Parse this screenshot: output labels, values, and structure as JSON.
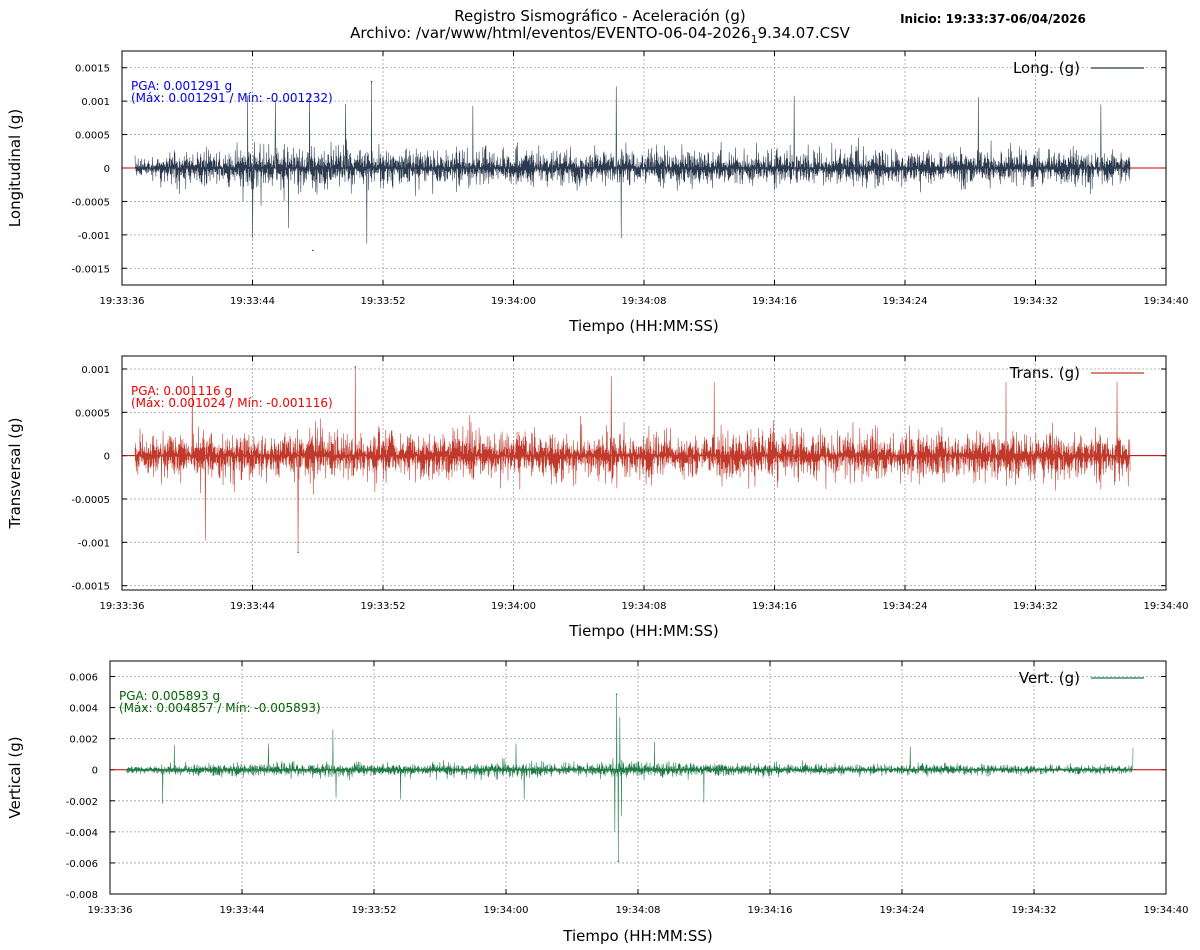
{
  "header": {
    "title_line1": "Registro Sismográfico - Aceleración (g)",
    "title_line2_pre": "Archivo: /var/www/html/eventos/EVENTO-06-04-2026",
    "title_line2_sub": "1",
    "title_line2_post": "9.34.07.CSV",
    "start_label": "Inicio: 19:33:37-06/04/2026"
  },
  "chart_data": [
    {
      "type": "line",
      "title": "",
      "xlabel": "Tiempo (HH:MM:SS)",
      "ylabel": "Longitudinal (g)",
      "legend": "Long. (g)",
      "legend_position": "top-right",
      "grid": true,
      "color": "#2b3a4e",
      "zero_line_color": "#cc0000",
      "x_range_seconds": [
        0,
        64
      ],
      "x_start_time": "19:33:36",
      "data_span_seconds": [
        0.8,
        61.8
      ],
      "xtick_labels": [
        "19:33:36",
        "19:33:44",
        "19:33:52",
        "19:34:00",
        "19:34:08",
        "19:34:16",
        "19:34:24",
        "19:34:32",
        "19:34:40"
      ],
      "ylim": [
        -0.00175,
        0.00175
      ],
      "yticks": [
        -0.0015,
        -0.001,
        -0.0005,
        0,
        0.0005,
        0.001,
        0.0015
      ],
      "ytick_labels": [
        "-0.0015",
        "-0.001",
        "-0.0005",
        "0",
        "0.0005",
        "0.001",
        "0.0015"
      ],
      "annotation_line1": "PGA: 0.001291 g",
      "annotation_line2": "(Máx: 0.001291 / Mín: -0.001232)",
      "annotation_color": "#0000ee",
      "max": 0.001291,
      "min": -0.001232,
      "max_time_s": 15.3,
      "min_time_s": 11.7,
      "base_amplitude": 0.00052,
      "envelope": [
        [
          0.8,
          0.7
        ],
        [
          3,
          0.95
        ],
        [
          6,
          1.1
        ],
        [
          8,
          1.25
        ],
        [
          10,
          1.25
        ],
        [
          12,
          1.3
        ],
        [
          14,
          1.1
        ],
        [
          16,
          1.0
        ],
        [
          20,
          1.0
        ],
        [
          26,
          1.0
        ],
        [
          30,
          0.95
        ],
        [
          40,
          0.95
        ],
        [
          50,
          0.95
        ],
        [
          58,
          0.95
        ],
        [
          61.8,
          0.85
        ]
      ],
      "spikes": [
        [
          7.7,
          0.00108
        ],
        [
          8.0,
          -0.00105
        ],
        [
          9.4,
          0.001
        ],
        [
          10.2,
          -0.0009
        ],
        [
          11.5,
          0.00112
        ],
        [
          13.7,
          0.00096
        ],
        [
          15.3,
          0.001291
        ],
        [
          15.0,
          -0.00113
        ],
        [
          21.5,
          0.00093
        ],
        [
          30.3,
          0.00122
        ],
        [
          30.6,
          -0.00105
        ],
        [
          41.2,
          0.00108
        ],
        [
          52.5,
          0.00106
        ],
        [
          60.0,
          0.00095
        ]
      ]
    },
    {
      "type": "line",
      "title": "",
      "xlabel": "Tiempo (HH:MM:SS)",
      "ylabel": "Transversal (g)",
      "legend": "Trans. (g)",
      "legend_position": "top-right",
      "grid": true,
      "color": "#c0392b",
      "zero_line_color": "#cc0000",
      "x_range_seconds": [
        0,
        64
      ],
      "x_start_time": "19:33:36",
      "data_span_seconds": [
        0.8,
        61.8
      ],
      "xtick_labels": [
        "19:33:36",
        "19:33:44",
        "19:33:52",
        "19:34:00",
        "19:34:08",
        "19:34:16",
        "19:34:24",
        "19:34:32",
        "19:34:40"
      ],
      "ylim": [
        -0.00155,
        0.00115
      ],
      "yticks": [
        -0.0015,
        -0.001,
        -0.0005,
        0,
        0.0005,
        0.001
      ],
      "ytick_labels": [
        "-0.0015",
        "-0.001",
        "-0.0005",
        "0",
        "0.0005",
        "0.001"
      ],
      "annotation_line1": "PGA: 0.001116 g",
      "annotation_line2": "(Máx: 0.001024 / Mín: -0.001116)",
      "annotation_color": "#ee0000",
      "max": 0.001024,
      "min": -0.001116,
      "max_time_s": 14.3,
      "min_time_s": 10.8,
      "base_amplitude": 0.00055,
      "envelope": [
        [
          0.8,
          0.75
        ],
        [
          3,
          0.95
        ],
        [
          6,
          1.0
        ],
        [
          10,
          1.05
        ],
        [
          14,
          1.05
        ],
        [
          20,
          0.95
        ],
        [
          30,
          0.95
        ],
        [
          40,
          0.95
        ],
        [
          50,
          0.95
        ],
        [
          58,
          1.0
        ],
        [
          61.8,
          0.9
        ]
      ],
      "spikes": [
        [
          4.3,
          0.00092
        ],
        [
          5.1,
          -0.00098
        ],
        [
          10.8,
          -0.001116
        ],
        [
          14.3,
          0.001024
        ],
        [
          30.0,
          0.00092
        ],
        [
          36.3,
          0.00085
        ],
        [
          54.2,
          0.00085
        ],
        [
          61.0,
          0.00085
        ]
      ]
    },
    {
      "type": "line",
      "title": "",
      "xlabel": "Tiempo (HH:MM:SS)",
      "ylabel": "Vertical (g)",
      "legend": "Vert. (g)",
      "legend_position": "top-right",
      "grid": true,
      "color": "#1e7b48",
      "zero_line_color": "#cc0000",
      "x_range_seconds": [
        0,
        64
      ],
      "x_start_time": "19:33:36",
      "data_span_seconds": [
        1.0,
        62.0
      ],
      "xtick_labels": [
        "19:33:36",
        "19:33:44",
        "19:33:52",
        "19:34:00",
        "19:34:08",
        "19:34:16",
        "19:34:24",
        "19:34:32",
        "19:34:40"
      ],
      "ylim": [
        -0.008,
        0.007
      ],
      "yticks": [
        -0.008,
        -0.006,
        -0.004,
        -0.002,
        0,
        0.002,
        0.004,
        0.006
      ],
      "ytick_labels": [
        "-0.008",
        "-0.006",
        "-0.004",
        "-0.002",
        "0",
        "0.002",
        "0.004",
        "0.006"
      ],
      "annotation_line1": "PGA: 0.005893 g",
      "annotation_line2": "(Máx: 0.004857 / Mín: -0.005893)",
      "annotation_color": "#006400",
      "max": 0.004857,
      "min": -0.005893,
      "max_time_s": 30.7,
      "min_time_s": 30.8,
      "base_amplitude": 0.00062,
      "envelope": [
        [
          1.0,
          0.8
        ],
        [
          3,
          1.0
        ],
        [
          6,
          1.25
        ],
        [
          10,
          1.35
        ],
        [
          13,
          1.45
        ],
        [
          18,
          1.2
        ],
        [
          24,
          1.5
        ],
        [
          27,
          1.25
        ],
        [
          29.5,
          1.3
        ],
        [
          31.0,
          1.7
        ],
        [
          33,
          1.5
        ],
        [
          38,
          1.25
        ],
        [
          42,
          1.2
        ],
        [
          48,
          1.1
        ],
        [
          55,
          1.0
        ],
        [
          62.0,
          0.9
        ]
      ],
      "spikes": [
        [
          3.2,
          -0.0022
        ],
        [
          3.9,
          0.0016
        ],
        [
          9.6,
          0.0017
        ],
        [
          13.5,
          0.0026
        ],
        [
          13.7,
          -0.0018
        ],
        [
          17.6,
          -0.0019
        ],
        [
          24.6,
          0.0017
        ],
        [
          25.1,
          -0.0019
        ],
        [
          30.7,
          0.004857
        ],
        [
          30.8,
          -0.005893
        ],
        [
          30.6,
          -0.004
        ],
        [
          30.9,
          0.0034
        ],
        [
          31.0,
          -0.003
        ],
        [
          33.0,
          0.0018
        ],
        [
          36.0,
          -0.0021
        ],
        [
          48.5,
          0.0015
        ],
        [
          62.0,
          0.0014
        ]
      ]
    }
  ]
}
